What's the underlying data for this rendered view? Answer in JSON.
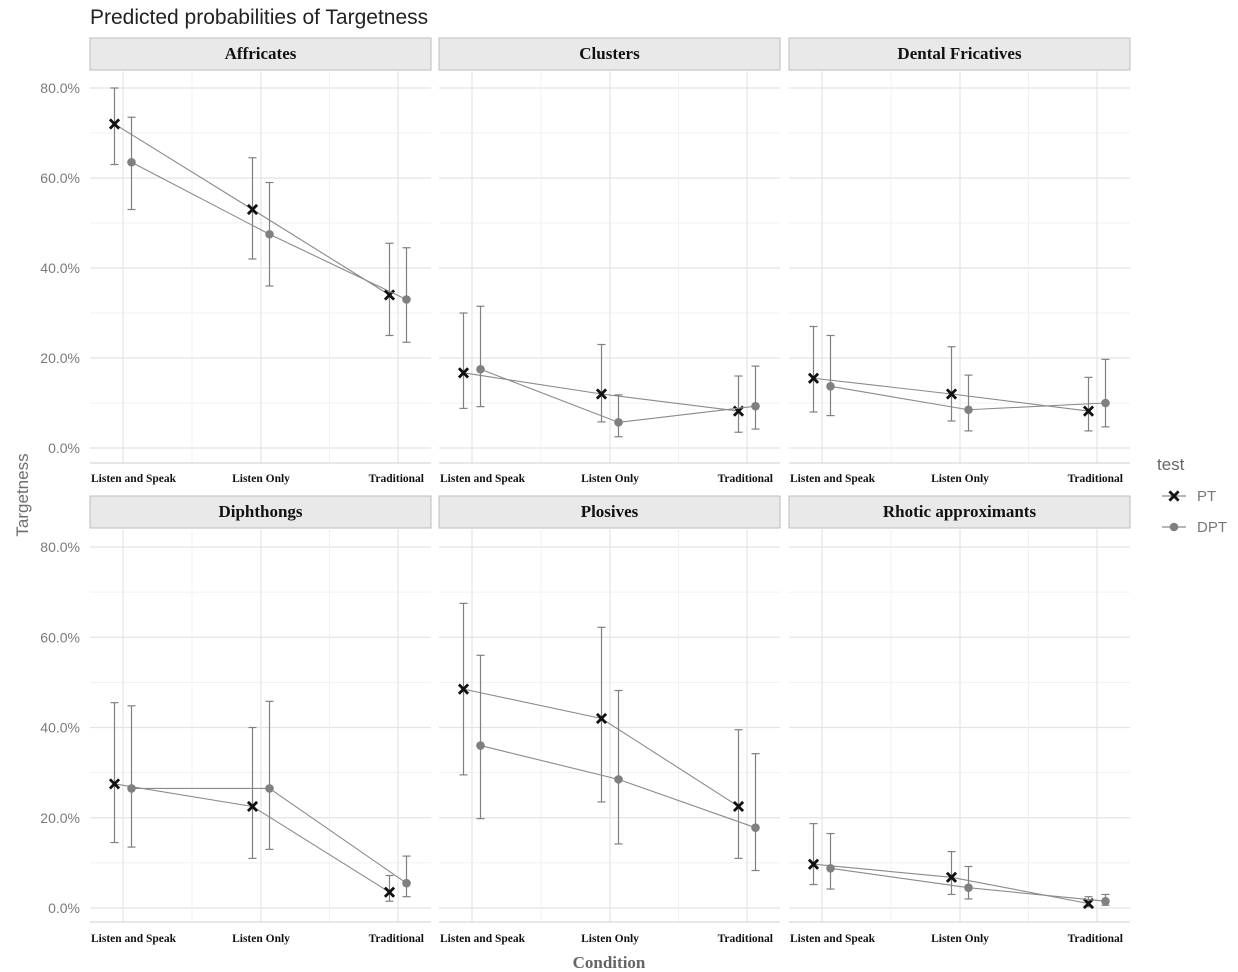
{
  "chart_data": {
    "type": "line",
    "title": "Predicted probabilities of Targetness",
    "xlabel": "Condition",
    "ylabel": "Targetness",
    "categories": [
      "Listen and Speak",
      "Listen Only",
      "Traditional"
    ],
    "y_ticks": [
      "0.0%",
      "20.0%",
      "40.0%",
      "60.0%",
      "80.0%"
    ],
    "ylim": [
      0,
      0.8
    ],
    "grid": true,
    "legend": {
      "title": "test",
      "placement": "right",
      "entries": [
        {
          "name": "PT",
          "marker": "x"
        },
        {
          "name": "DPT",
          "marker": "circle"
        }
      ]
    },
    "panels": [
      {
        "name": "Affricates",
        "series": [
          {
            "name": "PT",
            "values": [
              0.72,
              0.53,
              0.34
            ],
            "lower": [
              0.63,
              0.42,
              0.25
            ],
            "upper": [
              0.8,
              0.645,
              0.455
            ]
          },
          {
            "name": "DPT",
            "values": [
              0.635,
              0.475,
              0.33
            ],
            "lower": [
              0.53,
              0.36,
              0.235
            ],
            "upper": [
              0.735,
              0.59,
              0.445
            ]
          }
        ]
      },
      {
        "name": "Clusters",
        "series": [
          {
            "name": "PT",
            "values": [
              0.167,
              0.12,
              0.082
            ],
            "lower": [
              0.088,
              0.058,
              0.035
            ],
            "upper": [
              0.3,
              0.23,
              0.16
            ]
          },
          {
            "name": "DPT",
            "values": [
              0.175,
              0.057,
              0.093
            ],
            "lower": [
              0.092,
              0.025,
              0.042
            ],
            "upper": [
              0.315,
              0.118,
              0.182
            ]
          }
        ]
      },
      {
        "name": "Dental Fricatives",
        "series": [
          {
            "name": "PT",
            "values": [
              0.155,
              0.12,
              0.082
            ],
            "lower": [
              0.08,
              0.06,
              0.038
            ],
            "upper": [
              0.27,
              0.225,
              0.157
            ]
          },
          {
            "name": "DPT",
            "values": [
              0.137,
              0.085,
              0.1
            ],
            "lower": [
              0.072,
              0.038,
              0.047
            ],
            "upper": [
              0.25,
              0.162,
              0.197
            ]
          }
        ]
      },
      {
        "name": "Diphthongs",
        "series": [
          {
            "name": "PT",
            "values": [
              0.275,
              0.225,
              0.035
            ],
            "lower": [
              0.145,
              0.11,
              0.015
            ],
            "upper": [
              0.455,
              0.4,
              0.072
            ]
          },
          {
            "name": "DPT",
            "values": [
              0.265,
              0.265,
              0.055
            ],
            "lower": [
              0.135,
              0.13,
              0.025
            ],
            "upper": [
              0.448,
              0.458,
              0.115
            ]
          }
        ]
      },
      {
        "name": "Plosives",
        "series": [
          {
            "name": "PT",
            "values": [
              0.485,
              0.42,
              0.225
            ],
            "lower": [
              0.295,
              0.235,
              0.11
            ],
            "upper": [
              0.675,
              0.622,
              0.395
            ]
          },
          {
            "name": "DPT",
            "values": [
              0.36,
              0.285,
              0.178
            ],
            "lower": [
              0.198,
              0.142,
              0.083
            ],
            "upper": [
              0.56,
              0.482,
              0.342
            ]
          }
        ]
      },
      {
        "name": "Rhotic approximants",
        "series": [
          {
            "name": "PT",
            "values": [
              0.097,
              0.068,
              0.01
            ],
            "lower": [
              0.052,
              0.03,
              0.003
            ],
            "upper": [
              0.187,
              0.125,
              0.025
            ]
          },
          {
            "name": "DPT",
            "values": [
              0.088,
              0.045,
              0.015
            ],
            "lower": [
              0.042,
              0.02,
              0.006
            ],
            "upper": [
              0.165,
              0.092,
              0.03
            ]
          }
        ]
      }
    ]
  }
}
